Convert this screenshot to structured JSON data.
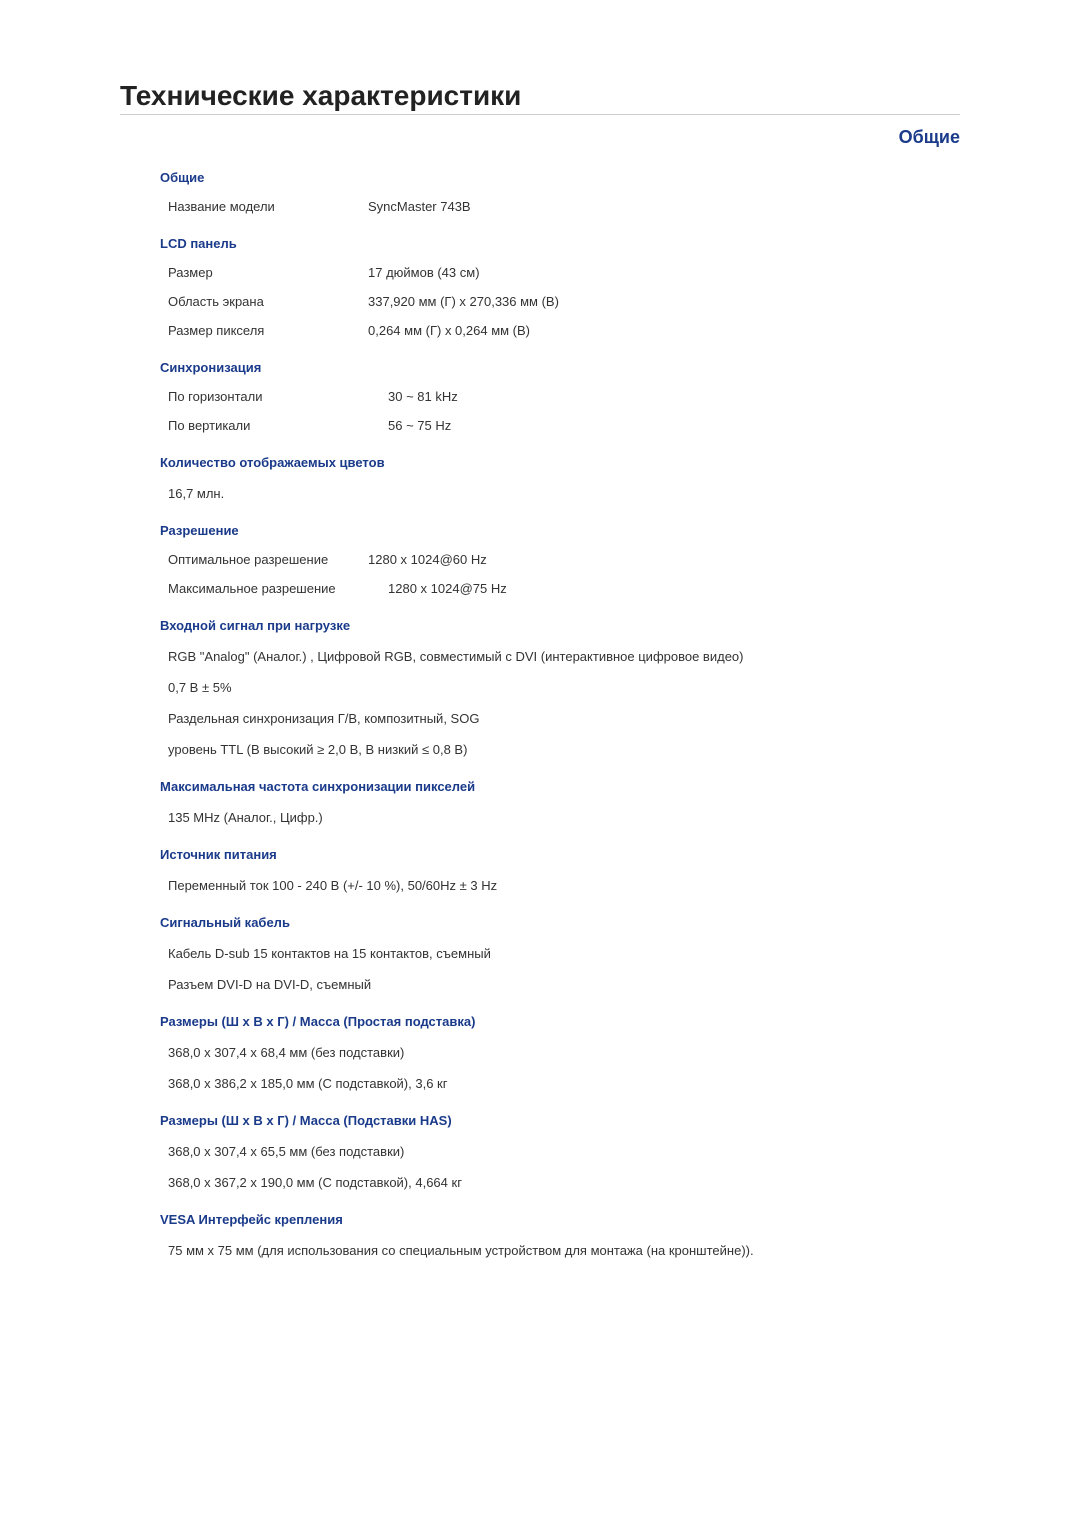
{
  "title": "Технические характеристики",
  "tab": "Общие",
  "sections": {
    "general": {
      "head": "Общие",
      "model_label": "Название модели",
      "model_value": "SyncMaster 743B"
    },
    "lcd": {
      "head": "LCD панель",
      "size_label": "Размер",
      "size_value": "17 дюймов (43 см)",
      "area_label": "Область экрана",
      "area_value": "337,920 мм (Г) x 270,336 мм (В)",
      "pixel_label": "Размер пикселя",
      "pixel_value": "0,264 мм (Г) x 0,264 мм (В)"
    },
    "sync": {
      "head": "Синхронизация",
      "h_label": "По горизонтали",
      "h_value": "30 ~ 81 kHz",
      "v_label": "По вертикали",
      "v_value": "56 ~ 75 Hz"
    },
    "colors": {
      "head": "Количество отображаемых цветов",
      "value": "16,7 млн."
    },
    "resolution": {
      "head": "Разрешение",
      "opt_label": "Оптимальное разрешение",
      "opt_value": "1280 x 1024@60 Hz",
      "max_label": "Максимальное разрешение",
      "max_value": "1280 x 1024@75 Hz"
    },
    "input": {
      "head": "Входной сигнал при нагрузке",
      "l1": "RGB \"Analog\" (Аналог.) , Цифровой RGB, совместимый с DVI (интерактивное цифровое видео)",
      "l2": "0,7 В ± 5%",
      "l3": "Раздельная синхронизация Г/В, композитный, SOG",
      "l4": "уровень TTL (В высокий ≥ 2,0 В, В низкий ≤ 0,8 В)"
    },
    "maxclock": {
      "head": "Максимальная частота синхронизации пикселей",
      "value": "135 MHz (Аналог., Цифр.)"
    },
    "power": {
      "head": "Источник питания",
      "value": "Переменный ток 100 - 240 В (+/- 10 %), 50/60Hz ± 3 Hz"
    },
    "cable": {
      "head": "Сигнальный кабель",
      "l1": "Кабель D-sub 15 контактов на 15 контактов, съемный",
      "l2": "Разъем DVI-D на DVI-D, съемный"
    },
    "dim_simple": {
      "head": "Размеры (Ш х В х Г) / Масса (Простая подставка)",
      "l1": "368,0 x 307,4 x 68,4 мм (без подставки)",
      "l2": "368,0 x 386,2 x 185,0 мм (С подставкой), 3,6 кг"
    },
    "dim_has": {
      "head": "Размеры (Ш х В х Г) / Масса (Подставки HAS)",
      "l1": "368,0 x 307,4 x 65,5 мм (без подставки)",
      "l2": "368,0 x 367,2 x 190,0 мм (С подставкой), 4,664 кг"
    },
    "vesa": {
      "head": "VESA Интерфейс крепления",
      "value": "75 мм x 75 мм (для использования со специальным устройством для монтажа (на кронштейне))."
    }
  }
}
